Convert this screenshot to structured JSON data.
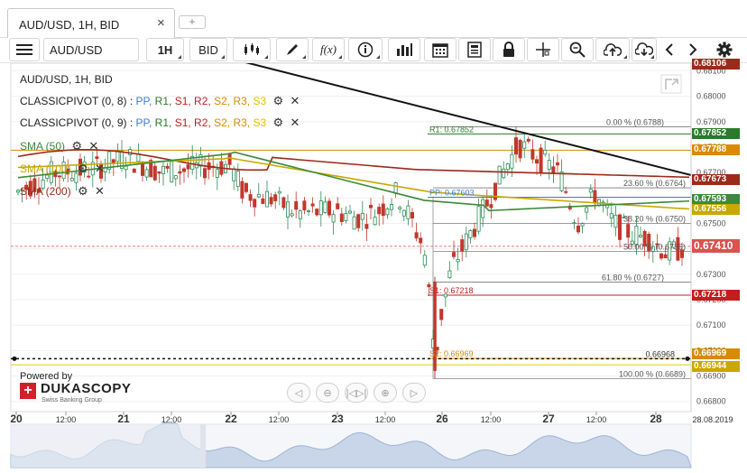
{
  "tab": {
    "title": "AUD/USD, 1H, BID",
    "close": "×",
    "add": "+"
  },
  "toolbar": {
    "menu_icon": "hamburger-icon",
    "instrument": "AUD/USD",
    "period": "1H",
    "side": "BID",
    "fx_label": "f(x)",
    "icons": [
      "candles-icon",
      "pen-icon",
      "fx-icon",
      "info-icon",
      "bars-icon",
      "calendar-icon",
      "notes-icon",
      "lock-icon",
      "crosshair-icon",
      "zoom-icon",
      "upload-icon",
      "download-icon",
      "chevron-left-icon",
      "chevron-right-icon",
      "gear-icon"
    ]
  },
  "chart_header": "AUD/USD, 1H, BID",
  "legend": {
    "pivot1": {
      "name": "CLASSICPIVOT (0, 8)",
      "sep": ":",
      "pp": "PP,",
      "r1": "R1,",
      "s1": "S1,",
      "r2": "R2,",
      "s2": "S2,",
      "r3": "R3,",
      "s3": "S3"
    },
    "pivot2": {
      "name": "CLASSICPIVOT (0, 9)",
      "sep": ":",
      "pp": "PP,",
      "r1": "R1,",
      "s1": "S1,",
      "r2": "R2,",
      "s2": "S2,",
      "r3": "R3,",
      "s3": "S3"
    },
    "sma50": "SMA (50)",
    "sma100": "SMA (100)",
    "sma200": "SMA (200)"
  },
  "colors": {
    "sma50": "#3a8a3a",
    "sma100": "#c9a800",
    "sma200": "#9c2a1a",
    "up": "#2e8b57",
    "down": "#c0392b",
    "current": "#d9534f",
    "r1": "#2a7a2a",
    "s1": "#c41d1d",
    "pp": "#3b7dd8",
    "s2": "#d98a00"
  },
  "branding": {
    "powered_by": "Powered by",
    "logo_mark": "+",
    "logo_name": "DUKASCOPY",
    "logo_sub": "Swiss Banking Group"
  },
  "nav_controls": [
    "◁",
    "⊖",
    "|◁▷|",
    "⊕",
    "▷"
  ],
  "annotations": {
    "fib0": "0.00 % (0.6788)",
    "fib236": "23.60 % (0.6764)",
    "fib382": "38.20 % (0.6750)",
    "fib50": "50.00 % (0.6739)",
    "fib618": "61.80 % (0.6727)",
    "fib100": "100.00 % (0.6689)",
    "r1": "R1: 0.67852",
    "pp": "PP: 0.67603",
    "s1": "S1: 0.67218",
    "s2": "S2: 0.66969",
    "hline": "0.66968"
  },
  "price_axis": [
    "0.68100",
    "0.68000",
    "0.67900",
    "0.67800",
    "0.67700",
    "0.67600",
    "0.67500",
    "0.67400",
    "0.67300",
    "0.67200",
    "0.67100",
    "0.67000",
    "0.66900",
    "0.66800"
  ],
  "price_tags": [
    {
      "value": "0.68106",
      "color": "#9c2a1a"
    },
    {
      "value": "0.67852",
      "color": "#2a7a2a"
    },
    {
      "value": "0.67788",
      "color": "#d98a00"
    },
    {
      "value": "0.67673",
      "color": "#9c2a1a"
    },
    {
      "value": "0.67593",
      "color": "#3a8a3a"
    },
    {
      "value": "0.67556",
      "color": "#c9a800"
    },
    {
      "value": "0.67410",
      "color": "#d9534f"
    },
    {
      "value": "0.67218",
      "color": "#c41d1d"
    },
    {
      "value": "0.66969",
      "color": "#d98a00"
    },
    {
      "value": "0.66944",
      "color": "#c9a800"
    }
  ],
  "time_axis": [
    "20",
    "12:00",
    "21",
    "12:00",
    "22",
    "12:00",
    "23",
    "12:00",
    "26",
    "12:00",
    "27",
    "12:00",
    "28",
    "28.08.2019"
  ]
}
